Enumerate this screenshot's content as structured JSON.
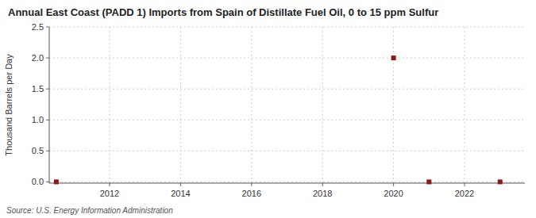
{
  "chart_data": {
    "type": "scatter",
    "title": "Annual East Coast (PADD 1) Imports from Spain of Distillate Fuel Oil, 0 to 15 ppm Sulfur",
    "y_label": "Thousand Barrels per Day",
    "annotations": [
      "Source: U.S. Energy Information Administration"
    ],
    "x": [
      2010.5,
      2020,
      2021,
      2023
    ],
    "values": [
      0,
      2.0,
      0,
      0
    ],
    "color": "#8b1a1a",
    "marker": "square",
    "xlim": [
      2010.3,
      2023.7
    ],
    "ylim": [
      -0.02,
      2.5
    ],
    "xticks": [
      2012,
      2014,
      2016,
      2018,
      2020,
      2022
    ],
    "yticks": [
      {
        "value": 0.0,
        "label": "0.0"
      },
      0.5,
      {
        "value": 1.0,
        "label": "1.0"
      },
      1.5,
      {
        "value": 2.0,
        "label": "2.0"
      },
      2.5
    ],
    "grid": true
  }
}
